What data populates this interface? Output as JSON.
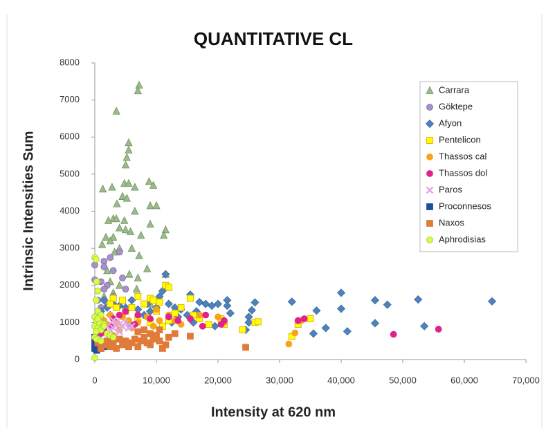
{
  "chart_data": {
    "type": "scatter",
    "title": "QUANTITATIVE CL",
    "x_label": "Intensity at 620 nm",
    "y_label": "Intrinsic Intensities Sum",
    "xlim": [
      0,
      70000
    ],
    "ylim": [
      0,
      8000
    ],
    "xticks": [
      0,
      {
        "value": 10000,
        "label": "10,000"
      },
      {
        "value": 20000,
        "label": "20,000"
      },
      {
        "value": 30000,
        "label": "30,000"
      },
      {
        "value": 40000,
        "label": "40,000"
      },
      {
        "value": 50000,
        "label": "50,000"
      },
      {
        "value": 60000,
        "label": "60,000"
      },
      {
        "value": 70000,
        "label": "70,000"
      }
    ],
    "yticks": [
      0,
      1000,
      2000,
      3000,
      4000,
      5000,
      6000,
      7000,
      8000
    ],
    "grid": false,
    "legend": "upper right",
    "series": [
      {
        "name": "Carrara",
        "color": "#9bbb8a",
        "marker": "triangle",
        "x": [
          7200,
          7000,
          3500,
          5500,
          5500,
          5200,
          5000,
          4800,
          5500,
          8800,
          9500,
          1300,
          2800,
          6500,
          4500,
          5200,
          3600,
          9000,
          10000,
          6500,
          4800,
          3000,
          2200,
          3500,
          9000,
          11500,
          11200,
          4000,
          5000,
          5800,
          7500,
          1800,
          3000,
          2500,
          1200,
          4000,
          6000,
          3200,
          7200,
          8500,
          2000,
          5600,
          11500,
          7000,
          2500,
          4000,
          6800,
          3000,
          1500,
          9000,
          12000
        ],
        "values": [
          7400,
          7250,
          6700,
          5850,
          5650,
          5450,
          5250,
          4750,
          4750,
          4800,
          4700,
          4600,
          4650,
          4650,
          4400,
          4350,
          4200,
          4150,
          4150,
          4000,
          3750,
          3800,
          3750,
          3800,
          3650,
          3500,
          3350,
          3550,
          3500,
          3450,
          3350,
          3300,
          3300,
          3200,
          3100,
          3000,
          3000,
          2900,
          2800,
          2450,
          2400,
          2300,
          2300,
          2200,
          2100,
          2000,
          1900,
          1800,
          1700,
          1500,
          1950
        ]
      },
      {
        "name": "Göktepe",
        "color": "#a692c9",
        "marker": "circle",
        "x": [
          0,
          0,
          1500,
          2500,
          4000,
          1500,
          3000,
          4500,
          1000,
          2000,
          1500,
          5000,
          3000,
          500,
          2000,
          1000
        ],
        "values": [
          2550,
          2150,
          2650,
          2750,
          2900,
          2500,
          2400,
          2200,
          2100,
          2000,
          1900,
          1900,
          1700,
          1600,
          1500,
          1400
        ]
      },
      {
        "name": "Afyon",
        "color": "#4f81bd",
        "marker": "diamond",
        "x": [
          64500,
          52500,
          53500,
          47500,
          45500,
          45500,
          41000,
          40000,
          40000,
          37500,
          36000,
          35500,
          32000,
          26000,
          25500,
          25000,
          25000,
          24500,
          21500,
          21500,
          22000,
          20000,
          19000,
          18000,
          17000,
          16500,
          15500,
          15000,
          14000,
          13000,
          12000,
          11500,
          11000,
          10500,
          10000,
          9000,
          8000,
          7000,
          6000,
          5000,
          4000,
          3000,
          2000,
          1500,
          1000,
          2500,
          5500,
          8500,
          13500,
          19500,
          16000,
          12500
        ],
        "values": [
          1570,
          1620,
          900,
          1480,
          1600,
          980,
          760,
          1800,
          1370,
          850,
          1320,
          700,
          1560,
          1540,
          1330,
          1150,
          1000,
          800,
          1600,
          1450,
          1250,
          1500,
          1450,
          1500,
          1550,
          1300,
          1750,
          1200,
          1350,
          1400,
          1500,
          2300,
          1850,
          1700,
          1400,
          1300,
          1200,
          1350,
          1600,
          1400,
          1450,
          1500,
          1400,
          1600,
          1300,
          1200,
          1000,
          1500,
          1150,
          900,
          1000,
          1000
        ]
      },
      {
        "name": "Pentelicon",
        "color": "#ffff00",
        "marker": "square",
        "x": [
          3000,
          4500,
          7000,
          9000,
          9500,
          10500,
          11500,
          12000,
          15500,
          14000,
          13000,
          12000,
          10000,
          8000,
          6000,
          5000,
          3500,
          2500,
          17000,
          18500,
          20500,
          21000,
          24000,
          26000,
          26500,
          32000,
          33000,
          35000,
          7000,
          11000,
          16000,
          9000
        ],
        "values": [
          1650,
          1600,
          1700,
          1650,
          1600,
          1550,
          2000,
          1950,
          1650,
          1400,
          1250,
          1050,
          1300,
          1500,
          1400,
          1300,
          1400,
          1500,
          1100,
          950,
          1100,
          950,
          800,
          1000,
          1020,
          620,
          950,
          1100,
          1100,
          900,
          1200,
          1000
        ]
      },
      {
        "name": "Thassos cal",
        "color": "#f7a31c",
        "marker": "circle",
        "x": [
          31500,
          32500,
          33500,
          21000,
          20000,
          17000,
          14000,
          13000,
          12000,
          10500,
          9500,
          8500,
          7000,
          6000,
          5500,
          4500,
          4000,
          3500,
          2500,
          2000,
          1500,
          3000,
          10000
        ],
        "values": [
          420,
          720,
          1050,
          1000,
          1150,
          1200,
          950,
          1050,
          1200,
          1050,
          900,
          1150,
          1000,
          850,
          1050,
          1150,
          800,
          1000,
          1200,
          950,
          1050,
          650,
          1350
        ]
      },
      {
        "name": "Thassos dol",
        "color": "#e0238c",
        "marker": "circle",
        "x": [
          48500,
          55800,
          34000,
          33000,
          21000,
          20500,
          18000,
          17500,
          15500,
          13500,
          12000,
          9000,
          7000,
          5000,
          4000,
          3000,
          2500,
          1500,
          1000,
          6500
        ],
        "values": [
          680,
          820,
          1100,
          1050,
          1050,
          950,
          1200,
          900,
          1100,
          1050,
          1150,
          1100,
          1200,
          1300,
          1200,
          1100,
          900,
          800,
          700,
          950
        ]
      },
      {
        "name": "Paros",
        "color": "#e3a6e8",
        "marker": "x",
        "x": [
          2000,
          3000,
          3500,
          4000,
          4500,
          5000,
          5500,
          6000,
          2500,
          1500,
          3000,
          4000
        ],
        "values": [
          900,
          850,
          1000,
          950,
          900,
          1000,
          850,
          900,
          800,
          950,
          1050,
          750
        ]
      },
      {
        "name": "Proconnesos",
        "color": "#1f4e9a",
        "marker": "square",
        "x": [
          0,
          0,
          200,
          500,
          1000,
          1500,
          0,
          300,
          2000,
          800
        ],
        "values": [
          300,
          450,
          350,
          500,
          300,
          350,
          600,
          250,
          400,
          450
        ]
      },
      {
        "name": "Naxos",
        "color": "#e07b39",
        "marker": "square",
        "x": [
          24500,
          15500,
          13000,
          12000,
          11500,
          11000,
          10500,
          10000,
          9500,
          9000,
          8500,
          8000,
          7500,
          7000,
          6500,
          6000,
          5500,
          5000,
          4500,
          4000,
          3500,
          3000,
          2500,
          2000,
          1500,
          1000,
          500,
          7000,
          8000,
          9000,
          10500
        ],
        "values": [
          330,
          630,
          700,
          600,
          400,
          300,
          500,
          650,
          550,
          400,
          450,
          600,
          500,
          350,
          550,
          450,
          350,
          500,
          400,
          550,
          300,
          450,
          350,
          500,
          400,
          300,
          450,
          750,
          800,
          700,
          800
        ]
      },
      {
        "name": "Aphrodisias",
        "color": "#d9ff3c",
        "marker": "circle",
        "x": [
          0,
          200,
          300,
          500,
          200,
          500,
          1000,
          0,
          300,
          800,
          1500,
          0,
          500,
          1000,
          200,
          2000,
          2500,
          0,
          300,
          1000,
          0,
          1500,
          3000,
          500
        ],
        "values": [
          2750,
          2700,
          2100,
          1850,
          1600,
          1300,
          1200,
          1150,
          1050,
          1000,
          950,
          900,
          850,
          800,
          750,
          700,
          650,
          600,
          550,
          500,
          50,
          900,
          600,
          1100
        ]
      }
    ]
  }
}
